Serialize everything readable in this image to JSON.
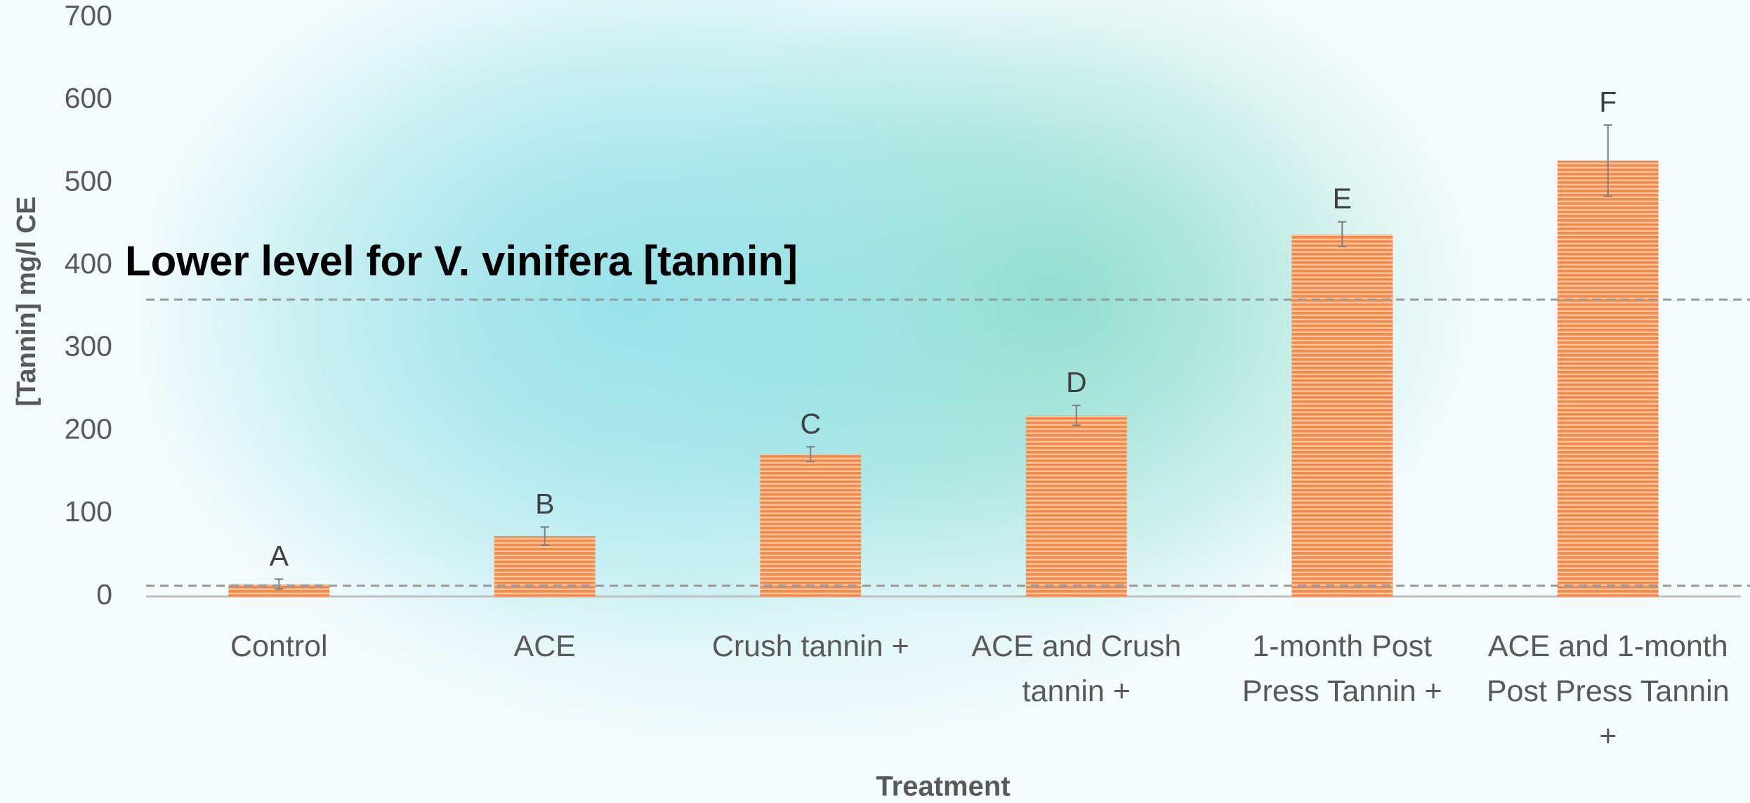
{
  "chart_data": {
    "type": "bar",
    "x_label": "Treatment",
    "y_label": "[Tannin] mg/l CE",
    "categories": [
      "Control",
      "ACE",
      "Crush tannin +",
      "ACE and Crush tannin +",
      "1-month Post Press Tannin +",
      "ACE and 1-month Post Press Tannin +"
    ],
    "values": [
      15,
      73,
      172,
      219,
      438,
      527
    ],
    "errors": [
      6,
      11,
      9,
      12,
      15,
      43
    ],
    "bar_labels": [
      "A",
      "B",
      "C",
      "D",
      "E",
      "F"
    ],
    "color": "#ee8a4c",
    "ylim": [
      0,
      700
    ],
    "yticks": [
      0,
      100,
      200,
      300,
      400,
      500,
      600,
      700
    ],
    "grid": false,
    "reference_lines": [
      359,
      13
    ],
    "annotation": "Lower level for V. vinifera [tannin]"
  }
}
